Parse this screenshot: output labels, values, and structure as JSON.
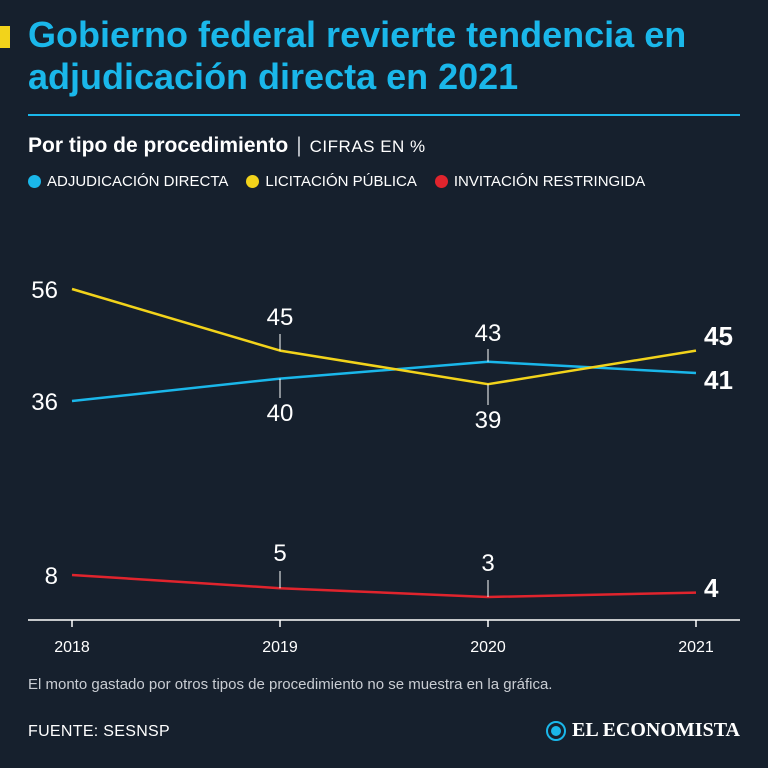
{
  "header": {
    "title": "Gobierno federal revierte tendencia en adjudicación directa en 2021",
    "subtitle": "Por tipo de procedimiento",
    "separator": "|",
    "units": "CIFRAS EN %"
  },
  "colors": {
    "background": "#16202d",
    "accent": "#1ab7ea",
    "adjudicacion": "#1ab7ea",
    "licitacion": "#f2d31b",
    "invitacion": "#e0242d",
    "axis": "#ffffff"
  },
  "chart_data": {
    "type": "line",
    "title": "Gobierno federal revierte tendencia en adjudicación directa en 2021",
    "subtitle": "Por tipo de procedimiento | CIFRAS EN %",
    "xlabel": "",
    "ylabel": "",
    "grid": false,
    "legend_position": "top-left",
    "categories": [
      "2018",
      "2019",
      "2020",
      "2021"
    ],
    "series": [
      {
        "name": "ADJUDICACIÓN DIRECTA",
        "color": "#1ab7ea",
        "values": [
          36,
          40,
          43,
          41
        ],
        "labels": [
          "36",
          "40",
          "43",
          "41"
        ]
      },
      {
        "name": "LICITACIÓN PÚBLICA",
        "color": "#f2d31b",
        "values": [
          56,
          45,
          39,
          45
        ],
        "labels": [
          "56",
          "45",
          "39",
          "45"
        ]
      },
      {
        "name": "INVITACIÓN RESTRINGIDA",
        "color": "#e0242d",
        "values": [
          8,
          5,
          3,
          4
        ],
        "labels": [
          "8",
          "5",
          "3",
          "4"
        ]
      }
    ]
  },
  "footer": {
    "note": "El monto gastado por otros tipos de procedimiento no se muestra en la gráfica.",
    "source": "FUENTE: SESNSP",
    "brand": "EL ECONOMISTA"
  }
}
